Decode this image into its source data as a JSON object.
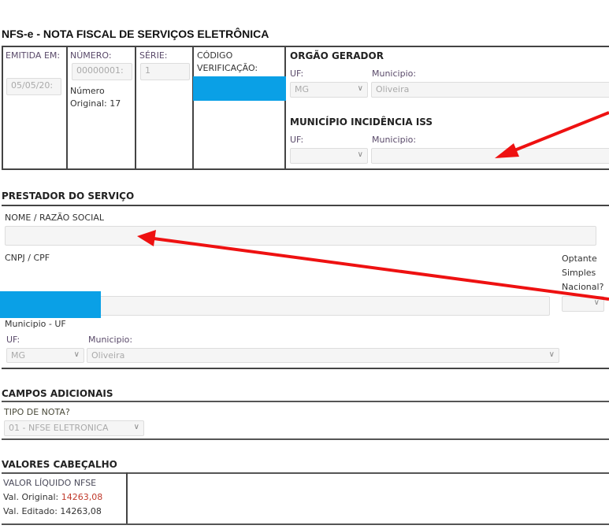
{
  "title": "NFS-e - NOTA FISCAL DE SERVIÇOS ELETRÔNICA",
  "header": {
    "emitida_label": "EMITIDA EM:",
    "emitida_value": "05/05/20:",
    "numero_label": "NÚMERO:",
    "numero_value": "00000001:",
    "numero_original_label": "Número Original:",
    "numero_original_value": "17",
    "serie_label": "SÉRIE:",
    "serie_value": "1",
    "codigo_label": "CÓDIGO VERIFICAÇÃO:",
    "orgao_title": "ORGÃO GERADOR",
    "orgao_uf_label": "UF:",
    "orgao_uf_value": "MG",
    "orgao_municipio_label": "Municipio:",
    "orgao_municipio_value": "Oliveira",
    "iss_title": "MUNICÍPIO INCIDÊNCIA ISS",
    "iss_uf_label": "UF:",
    "iss_uf_value": "",
    "iss_municipio_label": "Municipio:",
    "iss_municipio_value": ""
  },
  "prestador": {
    "title": "PRESTADOR DO SERVIÇO",
    "nome_label": "NOME / RAZÃO SOCIAL",
    "nome_value": "",
    "cnpj_label": "CNPJ / CPF",
    "optante_label": "Optante Simples Nacional?",
    "municipio_uf_label": "Municipio - UF",
    "uf_label": "UF:",
    "uf_value": "MG",
    "municipio_label": "Municipio:",
    "municipio_value": "Oliveira"
  },
  "campos": {
    "title": "CAMPOS ADICIONAIS",
    "tipo_label": "TIPO DE NOTA?",
    "tipo_value": "01 - NFSE ELETRONICA"
  },
  "valores": {
    "title": "VALORES CABEÇALHO",
    "liquido_label": "VALOR LÍQUIDO NFSE",
    "original_label": "Val. Original:",
    "original_value": "14263,08",
    "editado_label": "Val. Editado:",
    "editado_value": "14263,08"
  },
  "colors": {
    "redaction": "#0aa0e6",
    "annotation_arrow": "#ee1111",
    "original_value": "#c0392b"
  }
}
